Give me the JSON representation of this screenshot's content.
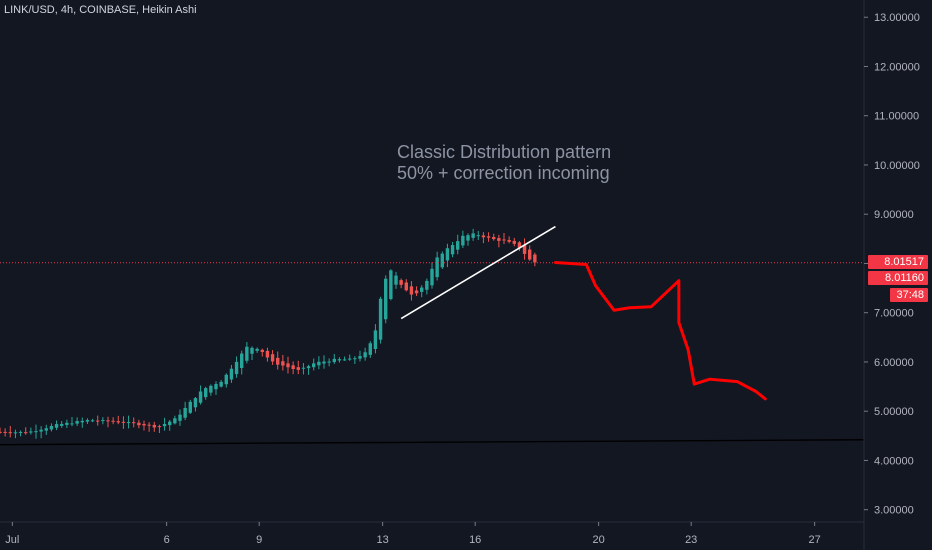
{
  "header": {
    "title": "LINK/USD, 4h, COINBASE, Heikin Ashi"
  },
  "annotation": {
    "line1": "Classic Distribution pattern",
    "line2": "50% + correction incoming"
  },
  "price_labels": {
    "last": "8.01517",
    "current": "8.01160",
    "countdown": "37:48"
  },
  "colors": {
    "background": "#131722",
    "up": "#26a69a",
    "down": "#ef5350",
    "drawing": "#ff0000",
    "trendline": "#ffffff",
    "support": "#000000"
  },
  "chart_data": {
    "type": "candlestick",
    "style": "Heikin Ashi",
    "timeframe": "4h",
    "y_ticks": [
      "13.00000",
      "12.00000",
      "11.00000",
      "10.00000",
      "9.00000",
      "8.00000",
      "7.00000",
      "6.00000",
      "5.00000",
      "4.00000",
      "3.00000"
    ],
    "x_ticks": [
      {
        "label": "Jul",
        "day": 1
      },
      {
        "label": "6",
        "day": 6
      },
      {
        "label": "9",
        "day": 9
      },
      {
        "label": "13",
        "day": 13
      },
      {
        "label": "16",
        "day": 16
      },
      {
        "label": "20",
        "day": 20
      },
      {
        "label": "23",
        "day": 23
      },
      {
        "label": "27",
        "day": 27
      }
    ],
    "ylim": [
      2.75,
      13.35
    ],
    "xlim_days": [
      0.6,
      28.6
    ],
    "last_price": 8.01517,
    "current_price": 8.0116,
    "anchors": [
      [
        0.6,
        4.58
      ],
      [
        1.5,
        4.57
      ],
      [
        2.5,
        4.73
      ],
      [
        3.5,
        4.82
      ],
      [
        4.5,
        4.78
      ],
      [
        5.3,
        4.72
      ],
      [
        5.7,
        4.68
      ],
      [
        6.0,
        4.76
      ],
      [
        6.3,
        4.85
      ],
      [
        6.8,
        5.2
      ],
      [
        7.2,
        5.45
      ],
      [
        7.8,
        5.62
      ],
      [
        8.3,
        6.05
      ],
      [
        8.6,
        6.3
      ],
      [
        9.0,
        6.28
      ],
      [
        9.4,
        6.0
      ],
      [
        9.8,
        5.92
      ],
      [
        10.3,
        5.82
      ],
      [
        10.8,
        5.98
      ],
      [
        11.5,
        6.05
      ],
      [
        12.0,
        6.05
      ],
      [
        12.5,
        6.2
      ],
      [
        12.8,
        6.7
      ],
      [
        13.0,
        7.6
      ],
      [
        13.3,
        7.9
      ],
      [
        13.6,
        7.55
      ],
      [
        14.0,
        7.35
      ],
      [
        14.4,
        7.6
      ],
      [
        14.8,
        8.15
      ],
      [
        15.2,
        8.35
      ],
      [
        15.6,
        8.55
      ],
      [
        16.0,
        8.6
      ],
      [
        16.5,
        8.5
      ],
      [
        17.0,
        8.45
      ],
      [
        17.4,
        8.35
      ],
      [
        17.8,
        8.05
      ],
      [
        18.0,
        8.01
      ]
    ],
    "trendline": {
      "start": [
        13.6,
        6.88
      ],
      "end": [
        18.6,
        8.75
      ]
    },
    "support_line": {
      "start": [
        0.6,
        4.32
      ],
      "end": [
        28.6,
        4.42
      ]
    },
    "projection": [
      [
        18.6,
        8.02
      ],
      [
        19.6,
        7.98
      ],
      [
        19.9,
        7.55
      ],
      [
        20.5,
        7.05
      ],
      [
        21.0,
        7.1
      ],
      [
        21.7,
        7.12
      ],
      [
        22.6,
        7.65
      ],
      [
        22.6,
        6.8
      ],
      [
        22.9,
        6.25
      ],
      [
        23.1,
        5.55
      ],
      [
        23.6,
        5.65
      ],
      [
        24.5,
        5.6
      ],
      [
        25.1,
        5.4
      ],
      [
        25.4,
        5.25
      ]
    ],
    "grid": false
  }
}
